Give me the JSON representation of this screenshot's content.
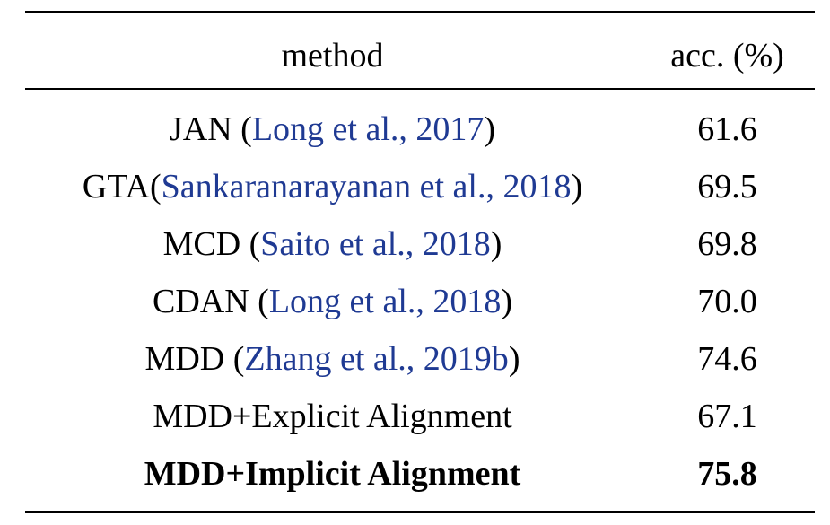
{
  "header": {
    "method": "method",
    "acc": "acc. (%)"
  },
  "rows": [
    {
      "name": "JAN",
      "cite_open": " (",
      "cite": "Long et al., 2017",
      "cite_close": ")",
      "acc": "61.6"
    },
    {
      "name": "GTA",
      "cite_open": "(",
      "cite": "Sankaranarayanan et al., 2018",
      "cite_close": ")",
      "acc": "69.5"
    },
    {
      "name": "MCD",
      "cite_open": " (",
      "cite": "Saito et al., 2018",
      "cite_close": ")",
      "acc": "69.8"
    },
    {
      "name": "CDAN",
      "cite_open": " (",
      "cite": "Long et al., 2018",
      "cite_close": ")",
      "acc": "70.0"
    },
    {
      "name": "MDD",
      "cite_open": " (",
      "cite": "Zhang et al., 2019b",
      "cite_close": ")",
      "acc": "74.6"
    },
    {
      "name": "MDD+Explicit Alignment",
      "acc": "67.1"
    },
    {
      "name": "MDD+Implicit Alignment",
      "acc": "75.8",
      "bold": true
    }
  ],
  "colors": {
    "citation": "#1f3a93",
    "text": "#000000",
    "rule": "#000000"
  }
}
